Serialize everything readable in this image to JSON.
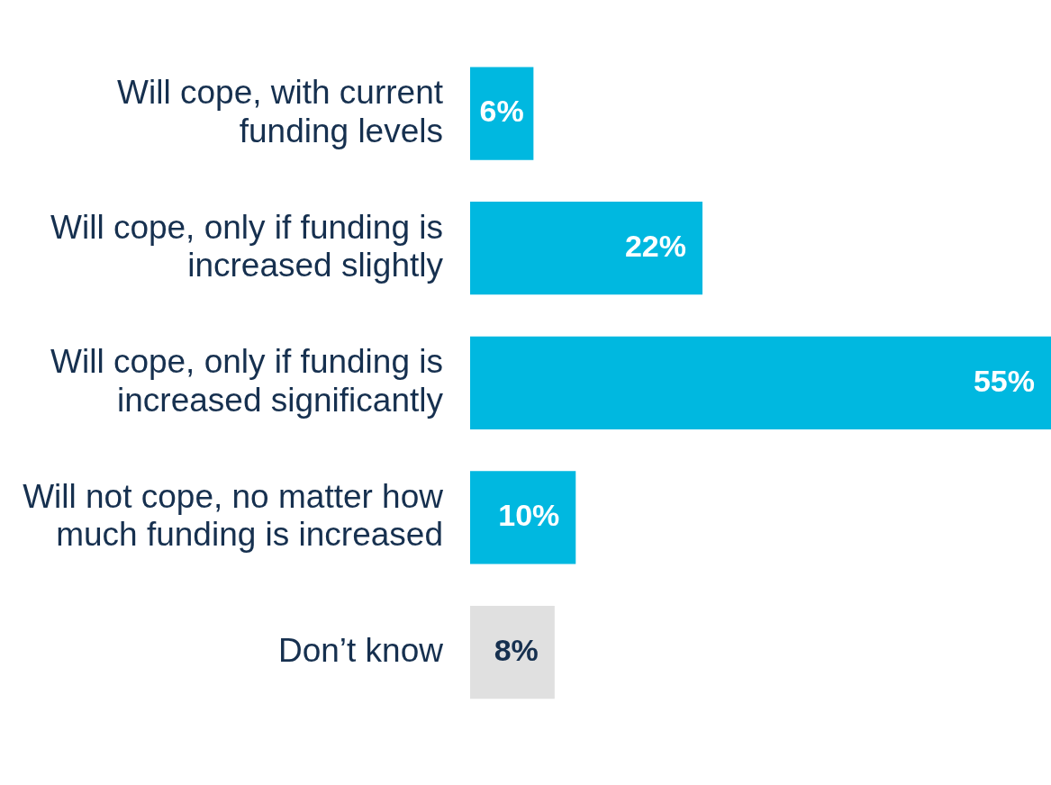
{
  "chart_data": {
    "type": "bar",
    "orientation": "horizontal",
    "categories": [
      "Will cope, with current funding levels",
      "Will cope, only if funding is increased slightly",
      "Will cope, only if funding is increased significantly",
      "Will not cope, no matter how much funding is increased",
      "Don’t know"
    ],
    "values": [
      6,
      22,
      55,
      10,
      8
    ],
    "colors": [
      "#00b8e0",
      "#00b8e0",
      "#00b8e0",
      "#00b8e0",
      "#e0e0e0"
    ],
    "value_labels": [
      "6%",
      "22%",
      "55%",
      "10%",
      "8%"
    ],
    "grid": false,
    "legend": false
  }
}
